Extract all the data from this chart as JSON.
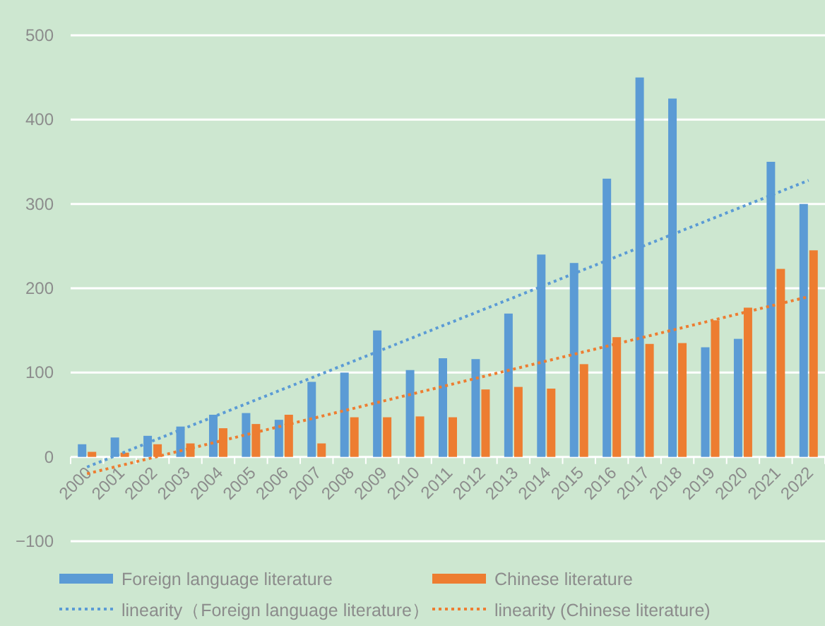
{
  "chart_data": {
    "type": "bar",
    "categories": [
      "2000",
      "2001",
      "2002",
      "2003",
      "2004",
      "2005",
      "2006",
      "2007",
      "2008",
      "2009",
      "2010",
      "2011",
      "2012",
      "2013",
      "2014",
      "2015",
      "2016",
      "2017",
      "2018",
      "2019",
      "2020",
      "2021",
      "2022"
    ],
    "series": [
      {
        "name": "Foreign language literature",
        "color": "#5b9bd5",
        "values": [
          15,
          23,
          25,
          36,
          50,
          52,
          44,
          89,
          100,
          150,
          103,
          117,
          116,
          170,
          240,
          230,
          330,
          450,
          425,
          130,
          140,
          350,
          300
        ]
      },
      {
        "name": "Chinese literature",
        "color": "#ed7d31",
        "values": [
          6,
          5,
          15,
          16,
          34,
          39,
          50,
          16,
          47,
          47,
          48,
          47,
          80,
          83,
          81,
          110,
          142,
          134,
          135,
          162,
          177,
          223,
          245
        ]
      },
      {
        "name": "linearity（Foreign language literature）",
        "type": "line",
        "line_style": "dotted",
        "color": "#5b9bd5",
        "values": [
          -12,
          null,
          null,
          null,
          null,
          null,
          null,
          null,
          null,
          null,
          null,
          null,
          null,
          null,
          null,
          null,
          null,
          null,
          null,
          null,
          null,
          null,
          328
        ]
      },
      {
        "name": "linearity (Chinese literature)",
        "type": "line",
        "line_style": "dotted",
        "color": "#ed7d31",
        "values": [
          -20,
          null,
          null,
          null,
          null,
          null,
          null,
          null,
          null,
          null,
          null,
          null,
          null,
          null,
          null,
          null,
          null,
          null,
          null,
          null,
          null,
          null,
          190
        ]
      }
    ],
    "ylim": [
      -100,
      500
    ],
    "yticks": [
      -100,
      0,
      100,
      200,
      300,
      400,
      500
    ],
    "grid": "y",
    "legend": "bottom"
  }
}
